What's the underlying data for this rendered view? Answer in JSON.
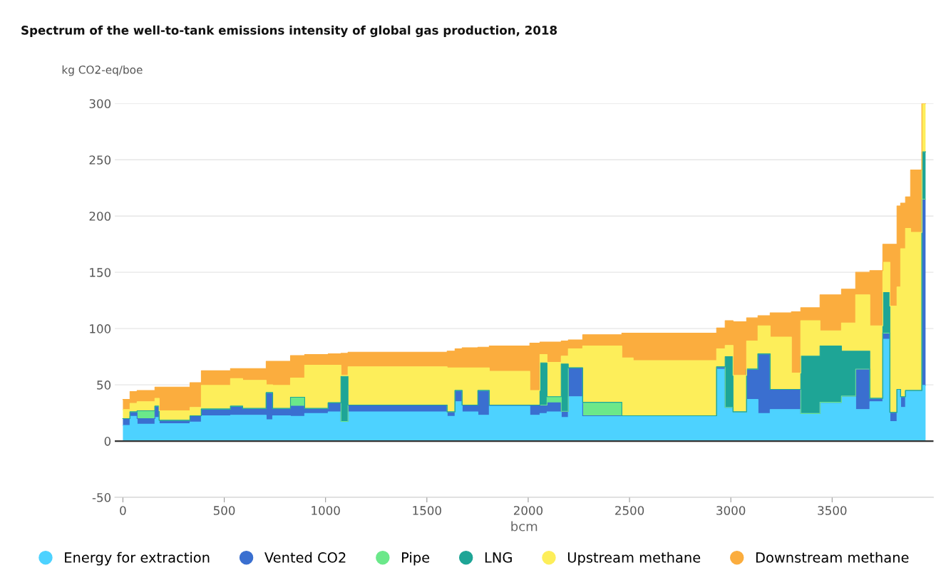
{
  "chart_data": {
    "type": "area",
    "stacked": true,
    "title": "Spectrum of the well-to-tank emissions intensity of global gas production, 2018",
    "ylabel": "kg CO2-eq/boe",
    "xlabel": "bcm",
    "x": [
      0,
      35,
      35,
      70,
      70,
      158,
      158,
      179,
      179,
      331,
      331,
      387,
      387,
      531,
      531,
      591,
      591,
      707,
      707,
      739,
      739,
      827,
      827,
      897,
      897,
      1013,
      1013,
      1076,
      1076,
      1111,
      1111,
      1600,
      1600,
      1639,
      1639,
      1674,
      1674,
      1752,
      1752,
      1808,
      1808,
      2008,
      2008,
      2058,
      2058,
      2093,
      2093,
      2163,
      2163,
      2198,
      2198,
      2269,
      2269,
      2462,
      2462,
      2518,
      2518,
      2930,
      2930,
      2972,
      2972,
      3011,
      3011,
      3078,
      3078,
      3134,
      3134,
      3194,
      3194,
      3299,
      3299,
      3345,
      3345,
      3440,
      3440,
      3546,
      3546,
      3616,
      3616,
      3686,
      3686,
      3750,
      3750,
      3785,
      3785,
      3820,
      3820,
      3838,
      3838,
      3862,
      3862,
      3887,
      3887,
      3943,
      3943,
      3961
    ],
    "series": [
      {
        "name": "Energy for extraction",
        "color": "#4dd2ff",
        "values": [
          14,
          14,
          22,
          22,
          15,
          15,
          21,
          21,
          15.5,
          15.5,
          17,
          17,
          22.5,
          22.5,
          23,
          23,
          23,
          23,
          19,
          19,
          22.5,
          22.5,
          22,
          22,
          24.5,
          24.5,
          26,
          26,
          17.5,
          17.5,
          26,
          26,
          22,
          22,
          35,
          35,
          26,
          26,
          23,
          23,
          31,
          31,
          23,
          23,
          24.5,
          24.5,
          26,
          26,
          21,
          21,
          39.5,
          39.5,
          22.5,
          22.5,
          22.5,
          22.5,
          22.5,
          22.5,
          64,
          64,
          30,
          30,
          26,
          26,
          37,
          37,
          24.5,
          24.5,
          28,
          28,
          28,
          28,
          24.5,
          24.5,
          34.5,
          34.5,
          40,
          40,
          28,
          28,
          35,
          35,
          90.5,
          90.5,
          17.5,
          17.5,
          46,
          46,
          30,
          30,
          45,
          45,
          45,
          45,
          49.5,
          49.5
        ]
      },
      {
        "name": "Vented CO2",
        "color": "#3a6fd0",
        "values": [
          6,
          6,
          4,
          4,
          5,
          5,
          10,
          10,
          3,
          3,
          5.5,
          5.5,
          6,
          6,
          8,
          8,
          6,
          6,
          24,
          24,
          6.5,
          6.5,
          9,
          9,
          4.5,
          4.5,
          8,
          8,
          0,
          0,
          6,
          6,
          4,
          4,
          10,
          10,
          6,
          6,
          22,
          22,
          1,
          1,
          9,
          9,
          7.5,
          7.5,
          8,
          8,
          5.5,
          5.5,
          25.5,
          25.5,
          0,
          0,
          0,
          0,
          0,
          0,
          2,
          2,
          0,
          0,
          0,
          0,
          27,
          27,
          53,
          53,
          18,
          18,
          18,
          18,
          0,
          0,
          0,
          0,
          0,
          0,
          36,
          36,
          3,
          3,
          5.5,
          5.5,
          8,
          8,
          0,
          0,
          9.5,
          9.5,
          0,
          0,
          0,
          0,
          165.5,
          165.5
        ]
      },
      {
        "name": "Pipe",
        "color": "#6be88a",
        "values": [
          0,
          0,
          0,
          0,
          7,
          7,
          0,
          0,
          0,
          0,
          0,
          0,
          0,
          0,
          0,
          0,
          0,
          0,
          0,
          0,
          0,
          0,
          8,
          8,
          0,
          0,
          0,
          0,
          0,
          0,
          0,
          0,
          0,
          0,
          0,
          0,
          0,
          0,
          0,
          0,
          0,
          0,
          0,
          0,
          0,
          0,
          5.5,
          5.5,
          0,
          0,
          0,
          0,
          12,
          12,
          0,
          0,
          0,
          0,
          0,
          0,
          0,
          0,
          0,
          0,
          0,
          0,
          0,
          0,
          0,
          0,
          0,
          0,
          0,
          0,
          0,
          0,
          0,
          0,
          0,
          0,
          0,
          0,
          0,
          0,
          0,
          0,
          0,
          0,
          0,
          0,
          0,
          0,
          0,
          0,
          0,
          0
        ]
      },
      {
        "name": "LNG",
        "color": "#1ea596",
        "values": [
          0,
          0,
          0,
          0,
          0,
          0,
          0,
          0,
          0,
          0,
          0,
          0,
          0,
          0,
          0,
          0,
          0,
          0,
          0,
          0,
          0,
          0,
          0,
          0,
          0,
          0,
          0,
          0,
          40,
          40,
          0,
          0,
          0,
          0,
          0,
          0,
          0,
          0,
          0,
          0,
          0,
          0,
          0,
          0,
          37.5,
          37.5,
          0,
          0,
          42,
          42,
          0,
          0,
          0,
          0,
          0,
          0,
          0,
          0,
          0,
          0,
          45,
          45,
          0,
          0,
          0,
          0,
          0,
          0,
          0,
          0,
          0,
          0,
          51,
          51,
          50,
          50,
          40,
          40,
          16,
          16,
          0,
          0,
          36,
          36,
          0,
          0,
          0,
          0,
          0,
          0,
          0,
          0,
          0,
          0,
          42,
          42
        ]
      },
      {
        "name": "Upstream methane",
        "color": "#fdee5a",
        "values": [
          8,
          8,
          7.5,
          7.5,
          8,
          8,
          7,
          7,
          8.5,
          8.5,
          7.5,
          7.5,
          21,
          21,
          24.5,
          24.5,
          25,
          25,
          7,
          7,
          20.5,
          20.5,
          17,
          17,
          38.5,
          38.5,
          33.5,
          33.5,
          1,
          1,
          34,
          34,
          39,
          39,
          20,
          20,
          33,
          33,
          20,
          20,
          30,
          30,
          13,
          13,
          7.5,
          7.5,
          30.5,
          30.5,
          7,
          7,
          17,
          17,
          50,
          50,
          51.5,
          51.5,
          49,
          49,
          16,
          16,
          10,
          10,
          32.5,
          32.5,
          25,
          25,
          25,
          25,
          46.5,
          46.5,
          14.5,
          14.5,
          31.5,
          31.5,
          13.5,
          13.5,
          25,
          25,
          50,
          50,
          64.5,
          64.5,
          27,
          27,
          94.5,
          94.5,
          91,
          91,
          131.5,
          131.5,
          144,
          144,
          140.5,
          140.5,
          43,
          43
        ]
      },
      {
        "name": "Downstream methane",
        "color": "#fbad3e",
        "values": [
          9,
          9,
          10.5,
          10.5,
          10,
          10,
          10,
          10,
          21,
          21,
          22,
          22,
          13,
          13,
          9,
          9,
          10.5,
          10.5,
          21,
          21,
          21.5,
          21.5,
          20,
          20,
          9.5,
          9.5,
          10,
          10,
          19.5,
          19.5,
          13,
          13,
          15,
          15,
          17,
          17,
          18,
          18,
          18.5,
          18.5,
          22.5,
          22.5,
          42,
          42,
          11,
          11,
          18,
          18,
          13.5,
          13.5,
          8,
          8,
          10,
          10,
          22,
          22,
          24.5,
          24.5,
          18.5,
          18.5,
          22,
          22,
          47.5,
          47.5,
          20.5,
          20.5,
          9,
          9,
          21.5,
          21.5,
          54.5,
          54.5,
          11.5,
          11.5,
          32,
          32,
          30,
          30,
          20,
          20,
          49,
          49,
          16,
          16,
          55,
          55,
          72,
          72,
          40.5,
          40.5,
          28,
          28,
          55.5,
          55.5,
          0,
          0
        ]
      }
    ],
    "xlim": [
      -40,
      4000
    ],
    "ylim": [
      -50,
      300
    ],
    "xticks": [
      0,
      500,
      1000,
      1500,
      2000,
      2500,
      3000,
      3500
    ],
    "yticks": [
      -50,
      0,
      50,
      100,
      150,
      200,
      250,
      300
    ],
    "grid": "y",
    "legend": "bottom"
  }
}
